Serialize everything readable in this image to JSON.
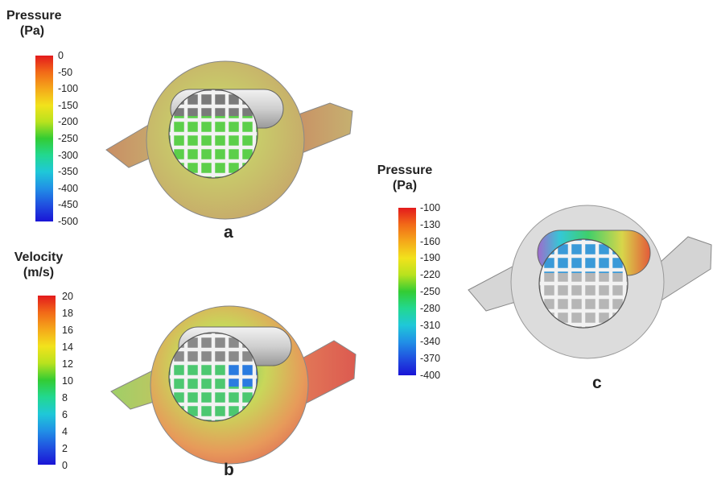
{
  "legends": {
    "pressure_a": {
      "title_line1": "Pressure",
      "title_line2": "(Pa)",
      "ticks": [
        "0",
        "-50",
        "-100",
        "-150",
        "-200",
        "-250",
        "-300",
        "-350",
        "-400",
        "-450",
        "-500"
      ]
    },
    "velocity_b": {
      "title_line1": "Velocity",
      "title_line2": "(m/s)",
      "ticks": [
        "20",
        "18",
        "16",
        "14",
        "12",
        "10",
        "8",
        "6",
        "4",
        "2",
        "0"
      ]
    },
    "pressure_c": {
      "title_line1": "Pressure",
      "title_line2": "(Pa)",
      "ticks": [
        "-100",
        "-130",
        "-160",
        "-190",
        "-220",
        "-250",
        "-280",
        "-310",
        "-340",
        "-370",
        "-400"
      ]
    }
  },
  "panels": {
    "a": {
      "label": "a"
    },
    "b": {
      "label": "b"
    },
    "c": {
      "label": "c"
    }
  },
  "colors": {
    "scale_top": "#e31a1c",
    "scale_mid": "#33cc33",
    "scale_bottom": "#1a14d6",
    "grey_body": "#d8d8d8"
  }
}
